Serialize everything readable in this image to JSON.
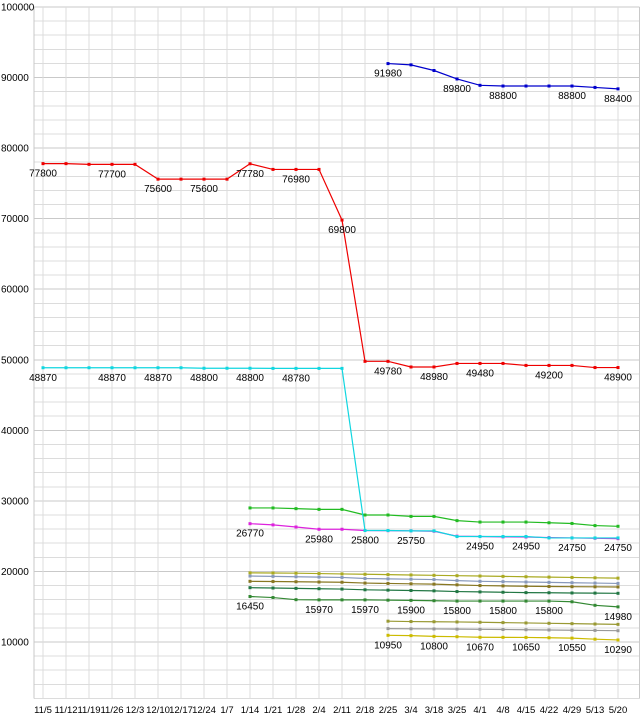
{
  "chart": {
    "background": "#ffffff",
    "grid_minor_color": "#dcdcdc",
    "grid_major_color": "#c9c9c9",
    "axis_text_color": "#000000"
  },
  "chart_data": {
    "type": "line",
    "title": "",
    "xlabel": "",
    "ylabel": "",
    "legend": "none",
    "grid": true,
    "ylim": [
      2000,
      100000
    ],
    "y_minor_step": 2000,
    "y_ticks": [
      10000,
      20000,
      30000,
      40000,
      50000,
      60000,
      70000,
      80000,
      90000,
      100000
    ],
    "y_tick_labels": [
      "10000",
      "20000",
      "30000",
      "40000",
      "50000",
      "60000",
      "70000",
      "80000",
      "90000",
      "100000"
    ],
    "x_tick_labels": [
      "11/5",
      "11/12",
      "11/19",
      "11/26",
      "12/3",
      "12/10",
      "12/17",
      "12/24",
      "1/7",
      "1/14",
      "1/21",
      "1/28",
      "2/4",
      "2/11",
      "2/18",
      "2/25",
      "3/4",
      "3/18",
      "3/25",
      "4/1",
      "4/8",
      "4/15",
      "4/22",
      "4/29",
      "5/13",
      "5/20"
    ],
    "series": [
      {
        "name": "olive",
        "color": "#aaaa22",
        "start": 9,
        "values": [
          19800,
          19780,
          19750,
          19700,
          19650,
          19600,
          19550,
          19500,
          19450,
          19400,
          19350,
          19300,
          19250,
          19200,
          19150,
          19100,
          19050
        ],
        "point_labels": {}
      },
      {
        "name": "slate",
        "color": "#8899bb",
        "start": 9,
        "values": [
          19350,
          19300,
          19250,
          19200,
          19150,
          19000,
          18950,
          18900,
          18850,
          18700,
          18600,
          18550,
          18500,
          18450,
          18400,
          18350,
          18300
        ],
        "point_labels": {}
      },
      {
        "name": "dark-olive",
        "color": "#887722",
        "start": 9,
        "values": [
          18600,
          18570,
          18540,
          18500,
          18470,
          18350,
          18300,
          18250,
          18200,
          18100,
          18000,
          17950,
          17900,
          17870,
          17840,
          17820,
          17800
        ],
        "point_labels": {}
      },
      {
        "name": "dark-green",
        "color": "#227744",
        "start": 9,
        "values": [
          17700,
          17650,
          17600,
          17550,
          17500,
          17400,
          17350,
          17300,
          17250,
          17150,
          17100,
          17050,
          17000,
          16980,
          16950,
          16930,
          16900
        ],
        "point_labels": {}
      },
      {
        "name": "green-2",
        "color": "#338833",
        "start": 9,
        "values": [
          16450,
          16300,
          16000,
          15970,
          15970,
          15970,
          15930,
          15900,
          15850,
          15800,
          15800,
          15800,
          15800,
          15800,
          15700,
          15200,
          14980
        ],
        "point_labels": {
          "9": "16450",
          "12": "15970",
          "14": "15970",
          "16": "15900",
          "18": "15800",
          "20": "15800",
          "22": "15800",
          "25": "14980"
        }
      },
      {
        "name": "olive-2",
        "color": "#999933",
        "start": 15,
        "values": [
          12950,
          12900,
          12870,
          12840,
          12800,
          12750,
          12700,
          12650,
          12600,
          12550,
          12500
        ],
        "point_labels": {}
      },
      {
        "name": "gray",
        "color": "#999999",
        "start": 15,
        "values": [
          11900,
          11870,
          11850,
          11820,
          11800,
          11770,
          11740,
          11700,
          11670,
          11640,
          11600
        ],
        "point_labels": {}
      },
      {
        "name": "yellow",
        "color": "#ccbb00",
        "start": 15,
        "values": [
          10950,
          10900,
          10800,
          10750,
          10670,
          10660,
          10650,
          10600,
          10550,
          10400,
          10290
        ],
        "point_labels": {
          "15": "10950",
          "17": "10800",
          "19": "10670",
          "21": "10650",
          "23": "10550",
          "25": "10290"
        }
      },
      {
        "name": "green",
        "color": "#22bb22",
        "start": 9,
        "values": [
          29000,
          29000,
          28900,
          28800,
          28800,
          28000,
          28000,
          27800,
          27800,
          27200,
          27000,
          27000,
          27000,
          26900,
          26800,
          26500,
          26400
        ],
        "point_labels": {}
      },
      {
        "name": "magenta",
        "color": "#dd22dd",
        "start": 9,
        "values": [
          26770,
          26600,
          26300,
          25980,
          25980,
          25800,
          25780,
          25750,
          25700,
          25000,
          24950,
          24900,
          24880,
          24800,
          24750,
          24700,
          24650
        ],
        "point_labels": {
          "9": "26770",
          "12": "25980"
        }
      },
      {
        "name": "cyan",
        "color": "#11d6e0",
        "start": 0,
        "values": [
          48870,
          48870,
          48870,
          48870,
          48870,
          48870,
          48870,
          48800,
          48800,
          48800,
          48780,
          48780,
          48780,
          48780,
          25800,
          25800,
          25750,
          25750,
          24950,
          24950,
          24950,
          24950,
          24750,
          24750,
          24750,
          24750
        ],
        "point_labels": {
          "0": "48870",
          "3": "48870",
          "5": "48870",
          "7": "48800",
          "9": "48800",
          "11": "48780",
          "14": "25800",
          "16": "25750",
          "19": "24950",
          "21": "24950",
          "23": "24750",
          "25": "24750"
        }
      },
      {
        "name": "red",
        "color": "#ee0000",
        "start": 0,
        "values": [
          77800,
          77800,
          77700,
          77700,
          77700,
          75600,
          75600,
          75600,
          75600,
          77780,
          76980,
          76980,
          76980,
          69800,
          49780,
          49780,
          48980,
          48980,
          49480,
          49480,
          49480,
          49200,
          49200,
          49200,
          48900,
          48900
        ],
        "point_labels": {
          "0": "77800",
          "3": "77700",
          "5": "75600",
          "7": "75600",
          "9": "77780",
          "11": "76980",
          "13": "69800",
          "15": "49780",
          "17": "48980",
          "19": "49480",
          "22": "49200",
          "25": "48900"
        }
      },
      {
        "name": "blue",
        "color": "#0000cc",
        "start": 15,
        "values": [
          91980,
          91800,
          91000,
          89800,
          88900,
          88800,
          88800,
          88800,
          88800,
          88600,
          88400
        ],
        "point_labels": {
          "15": "91980",
          "18": "89800",
          "20": "88800",
          "23": "88800",
          "25": "88400"
        }
      }
    ]
  }
}
